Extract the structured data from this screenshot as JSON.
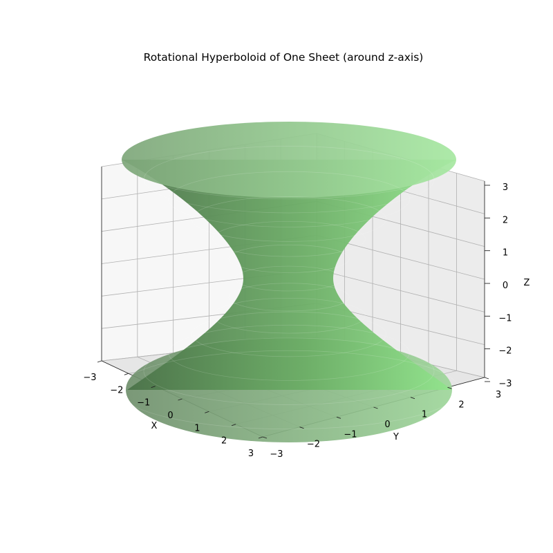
{
  "chart_data": {
    "type": "surface3d",
    "title": "Rotational Hyperboloid of One Sheet (around z-axis)",
    "surface": "hyperboloid of one sheet, x^2 + y^2 - z^2 = 1",
    "axis_of_rotation": "z",
    "xlabel": "X",
    "ylabel": "Y",
    "zlabel": "Z",
    "xlim": [
      -3,
      3
    ],
    "ylim": [
      -3,
      3
    ],
    "zlim": [
      -3,
      3
    ],
    "x_ticks": [
      "−3",
      "−2",
      "−1",
      "0",
      "1",
      "2",
      "3"
    ],
    "y_ticks": [
      "−3",
      "−2",
      "−1",
      "0",
      "1",
      "2",
      "3"
    ],
    "z_ticks": [
      "3",
      "2",
      "1",
      "0",
      "−1",
      "−2",
      "−3"
    ],
    "surface_color": "#90ee90",
    "grid": true
  }
}
